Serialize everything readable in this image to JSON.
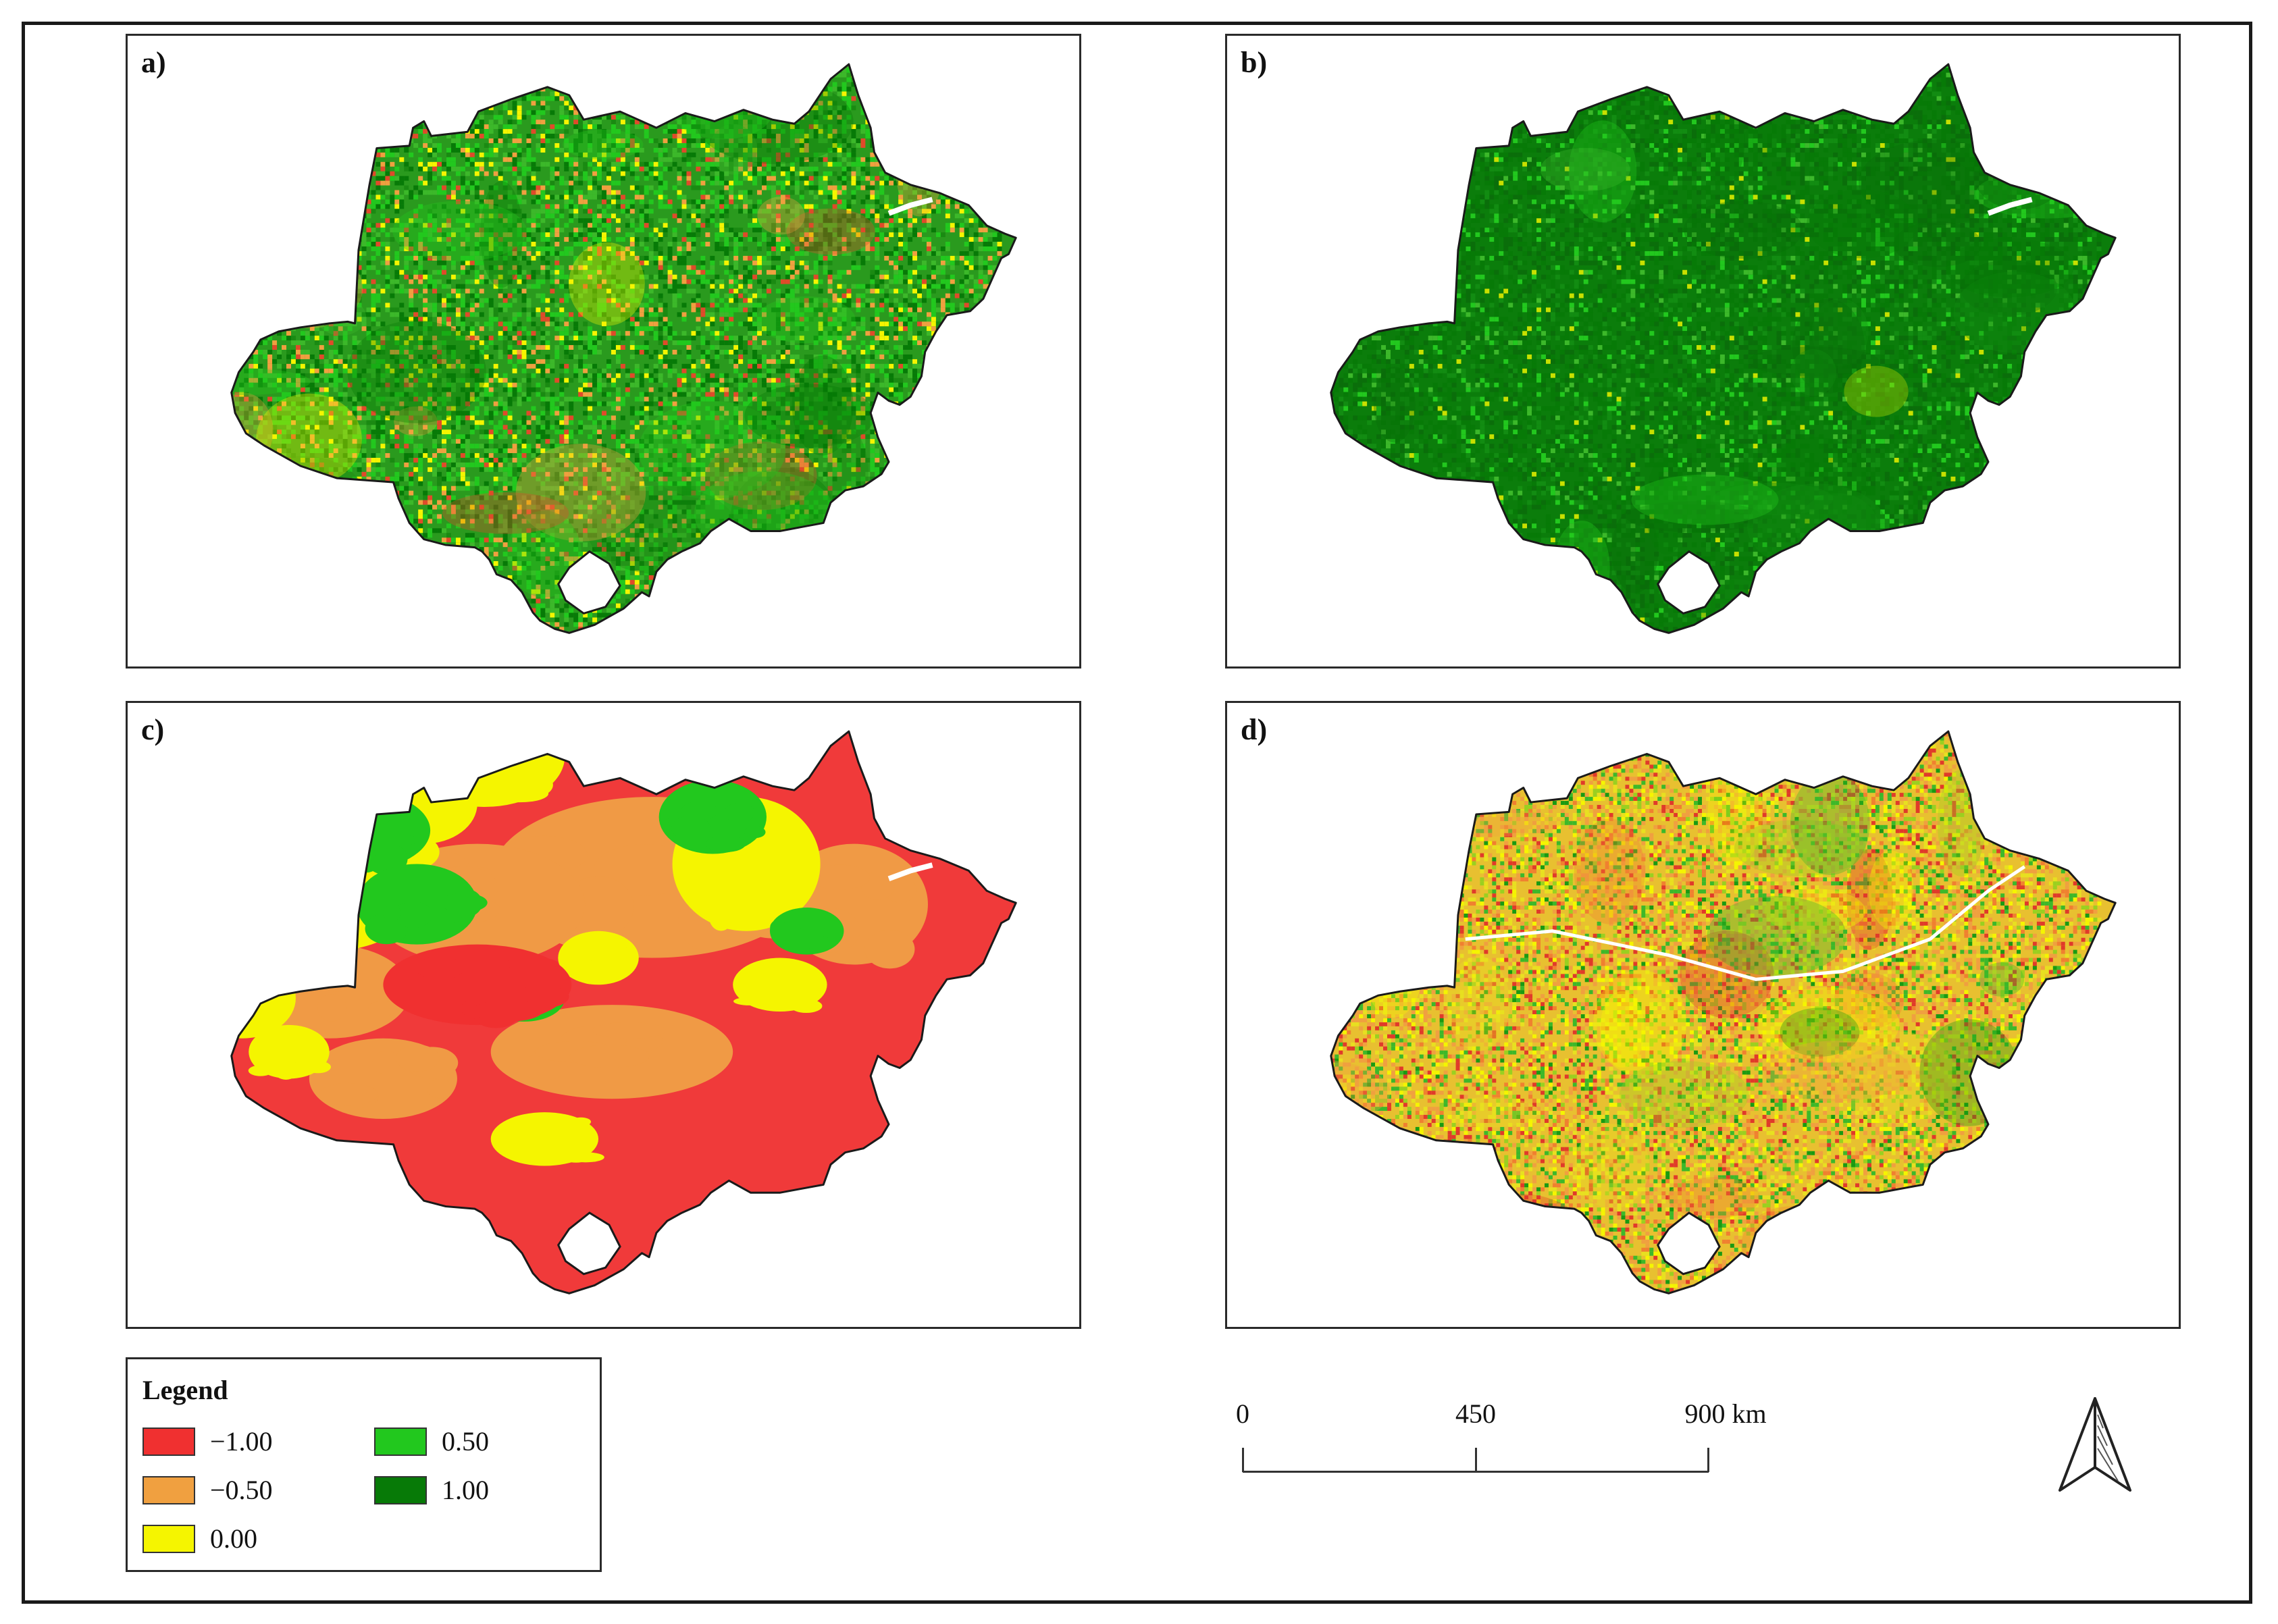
{
  "panels": [
    {
      "id": "a",
      "label": "a)",
      "pattern": "mixed-green"
    },
    {
      "id": "b",
      "label": "b)",
      "pattern": "dark-green"
    },
    {
      "id": "c",
      "label": "c)",
      "pattern": "red-yellow-patches"
    },
    {
      "id": "d",
      "label": "d)",
      "pattern": "orange-green-speckle"
    }
  ],
  "legend": {
    "title": "Legend",
    "items": [
      {
        "label": "−1.00",
        "color": "#f03030"
      },
      {
        "label": "−0.50",
        "color": "#f0a040"
      },
      {
        "label": "0.00",
        "color": "#f5f500"
      },
      {
        "label": "0.50",
        "color": "#22c81e"
      },
      {
        "label": "1.00",
        "color": "#077a07"
      }
    ]
  },
  "scale_bar": {
    "labels": [
      "0",
      "450",
      "900 km"
    ]
  },
  "north_arrow": {
    "icon": "north-arrow-icon"
  },
  "colors": {
    "dark_green": "#077a07",
    "green": "#22c81e",
    "yellow": "#f5f500",
    "orange": "#f0a040",
    "red": "#f03030",
    "outline": "#1a1a1a"
  }
}
